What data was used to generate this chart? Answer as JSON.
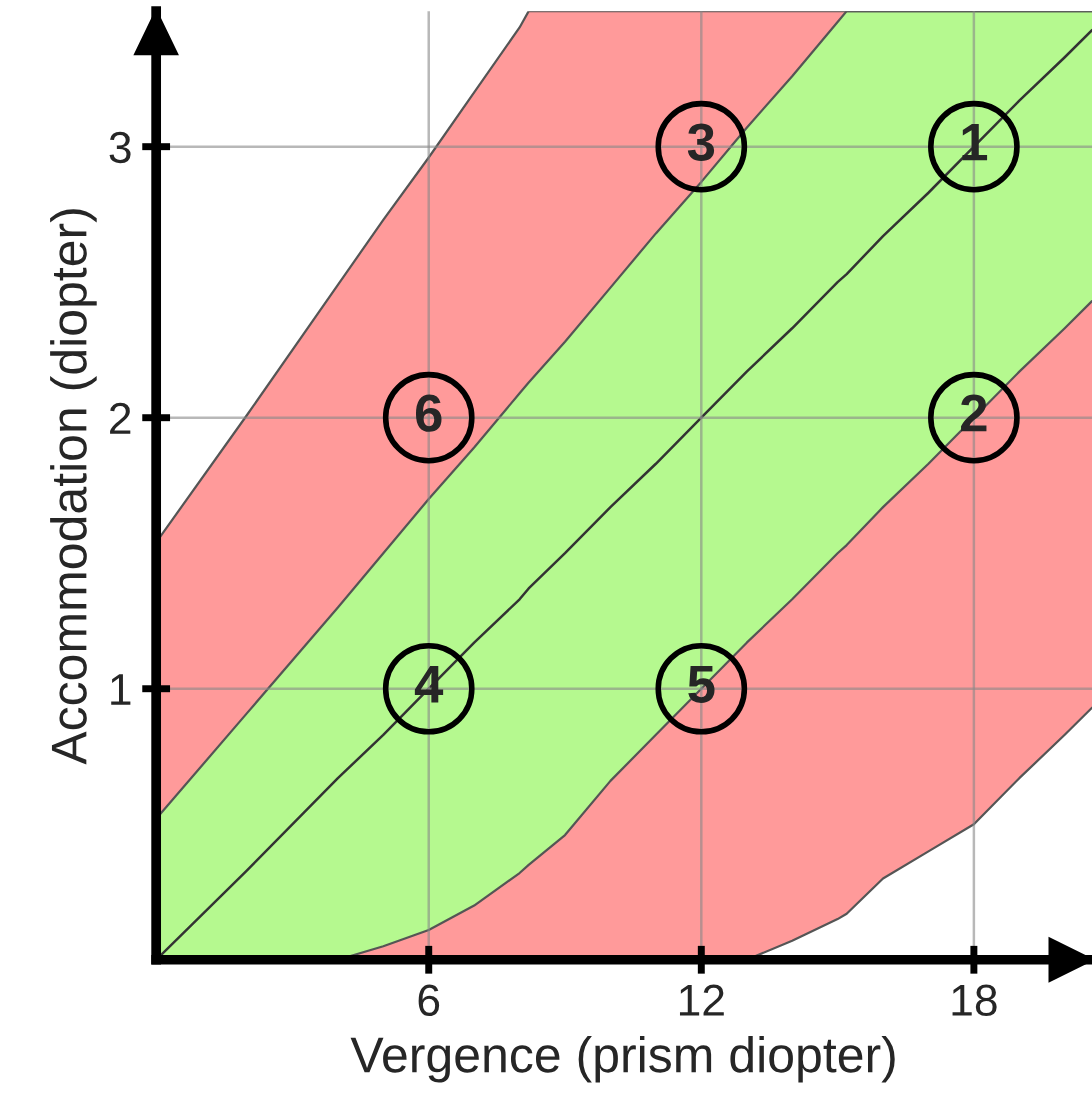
{
  "chart_data": {
    "type": "area",
    "stacked": true,
    "xlabel": "Vergence (prism diopter)",
    "ylabel": "Accommodation (diopter)",
    "x": [
      0,
      2,
      4,
      5,
      6,
      7,
      8,
      8.2,
      9,
      10,
      11,
      12,
      13,
      14,
      15,
      15.2,
      16,
      17,
      18,
      19,
      20,
      20.6
    ],
    "series": [
      {
        "color": "#ffffff",
        "values": [
          0,
          0,
          0,
          0,
          0,
          0,
          0,
          0,
          0,
          0,
          0,
          0,
          0,
          0.07,
          0.15,
          0.17,
          0.3,
          0.4,
          0.5,
          0.67,
          0.83,
          0.93
        ]
      },
      {
        "color": "#ff9a9a",
        "values": [
          0,
          0,
          0,
          0.05,
          0.11,
          0.2,
          0.32,
          0.35,
          0.46,
          0.66,
          0.83,
          1.0,
          1.17,
          1.26,
          1.35,
          1.36,
          1.37,
          1.43,
          1.5,
          1.5,
          1.5,
          1.5
        ]
      },
      {
        "color": "#b5f98f",
        "values": [
          0.52,
          0.91,
          1.3,
          1.45,
          1.59,
          1.69,
          1.77,
          1.78,
          1.82,
          1.82,
          1.85,
          1.87,
          1.9,
          1.93,
          1.96,
          1.97,
          1.83,
          1.67,
          1.5,
          1.33,
          1.17,
          1.07
        ]
      },
      {
        "color": "#ff9a9a",
        "values": [
          1.02,
          1.1,
          1.19,
          1.23,
          1.26,
          1.31,
          1.35,
          1.37,
          1.22,
          1.02,
          0.82,
          0.63,
          0.43,
          0.24,
          0.04,
          0,
          0,
          0,
          0,
          0,
          0,
          0
        ]
      },
      {
        "type": "line",
        "color": "#333333",
        "values": [
          0,
          0.33,
          0.67,
          0.83,
          1,
          1.17,
          1.33,
          1.37,
          1.5,
          1.67,
          1.83,
          2,
          2.17,
          2.33,
          2.5,
          2.53,
          2.67,
          2.83,
          3,
          3.17,
          3.33,
          3.43
        ]
      }
    ],
    "xlim": [
      0,
      20.6
    ],
    "ylim": [
      0,
      3.5
    ],
    "xticks": [
      6,
      12,
      18
    ],
    "yticks": [
      1,
      2,
      3
    ],
    "grid": true,
    "annotations": [
      {
        "text": "1",
        "x": 18,
        "y": 3
      },
      {
        "text": "2",
        "x": 18,
        "y": 2
      },
      {
        "text": "3",
        "x": 12,
        "y": 3
      },
      {
        "text": "4",
        "x": 6,
        "y": 1
      },
      {
        "text": "5",
        "x": 12,
        "y": 1
      },
      {
        "text": "6",
        "x": 6,
        "y": 2
      }
    ]
  }
}
